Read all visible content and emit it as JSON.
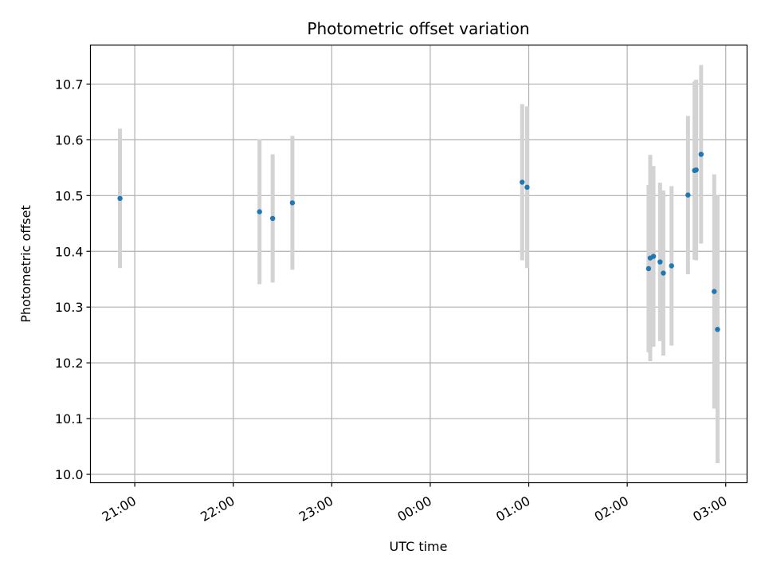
{
  "chart_data": {
    "type": "scatter",
    "title": "Photometric offset variation",
    "xlabel": "UTC time",
    "ylabel": "Photometric offset",
    "x_axis": {
      "kind": "time",
      "range": [
        "20:33",
        "03:13"
      ],
      "ticks": [
        "21:00",
        "22:00",
        "23:00",
        "00:00",
        "01:00",
        "02:00",
        "03:00"
      ]
    },
    "y_axis": {
      "range": [
        9.985,
        10.77
      ],
      "ticks": [
        10.0,
        10.1,
        10.2,
        10.3,
        10.4,
        10.5,
        10.6,
        10.7
      ]
    },
    "grid": true,
    "marker_color": "#1f77b4",
    "errorbar_color": "#d3d3d3",
    "points": [
      {
        "time": "20:51",
        "y": 10.495,
        "err": 0.125
      },
      {
        "time": "22:16",
        "y": 10.471,
        "err": 0.13
      },
      {
        "time": "22:24",
        "y": 10.459,
        "err": 0.115
      },
      {
        "time": "22:36",
        "y": 10.487,
        "err": 0.12
      },
      {
        "time": "00:56",
        "y": 10.524,
        "err": 0.14
      },
      {
        "time": "00:59",
        "y": 10.515,
        "err": 0.145
      },
      {
        "time": "02:13",
        "y": 10.369,
        "err": 0.15
      },
      {
        "time": "02:14",
        "y": 10.388,
        "err": 0.185
      },
      {
        "time": "02:16",
        "y": 10.391,
        "err": 0.162
      },
      {
        "time": "02:20",
        "y": 10.381,
        "err": 0.142
      },
      {
        "time": "02:22",
        "y": 10.361,
        "err": 0.148
      },
      {
        "time": "02:27",
        "y": 10.374,
        "err": 0.143
      },
      {
        "time": "02:37",
        "y": 10.501,
        "err": 0.142
      },
      {
        "time": "02:41",
        "y": 10.545,
        "err": 0.16
      },
      {
        "time": "02:42",
        "y": 10.546,
        "err": 0.162
      },
      {
        "time": "02:45",
        "y": 10.574,
        "err": 0.16
      },
      {
        "time": "02:53",
        "y": 10.328,
        "err": 0.21
      },
      {
        "time": "02:55",
        "y": 10.26,
        "err": 0.24
      }
    ]
  }
}
